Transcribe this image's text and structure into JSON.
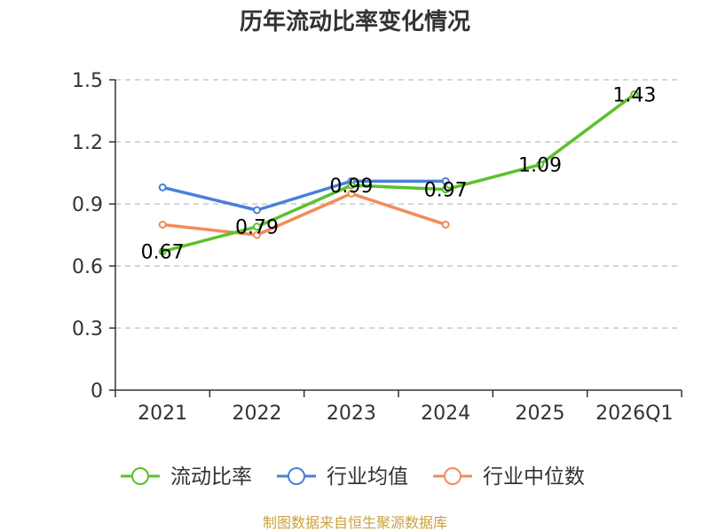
{
  "chart_data": {
    "type": "line",
    "title": "历年流动比率变化情况",
    "categories": [
      "2021",
      "2022",
      "2023",
      "2024",
      "2025",
      "2026Q1"
    ],
    "ylim": [
      0,
      1.5
    ],
    "yticks": [
      "0",
      "0.3",
      "0.6",
      "0.9",
      "1.2",
      "1.5"
    ],
    "ytick_values": [
      0,
      0.3,
      0.6,
      0.9,
      1.2,
      1.5
    ],
    "grid": true,
    "legend_position": "bottom-center",
    "series": [
      {
        "name": "流动比率",
        "color": "#5bc12b",
        "values": [
          0.67,
          0.79,
          0.99,
          0.97,
          1.09,
          1.43
        ],
        "labels": [
          "0.67",
          "0.79",
          "0.99",
          "0.97",
          "1.09",
          "1.43"
        ]
      },
      {
        "name": "行业均值",
        "color": "#4a7fd8",
        "values": [
          0.98,
          0.87,
          1.01,
          1.01,
          null,
          null
        ]
      },
      {
        "name": "行业中位数",
        "color": "#f28c59",
        "values": [
          0.8,
          0.75,
          0.95,
          0.8,
          null,
          null
        ]
      }
    ],
    "source": "制图数据来自恒生聚源数据库"
  }
}
